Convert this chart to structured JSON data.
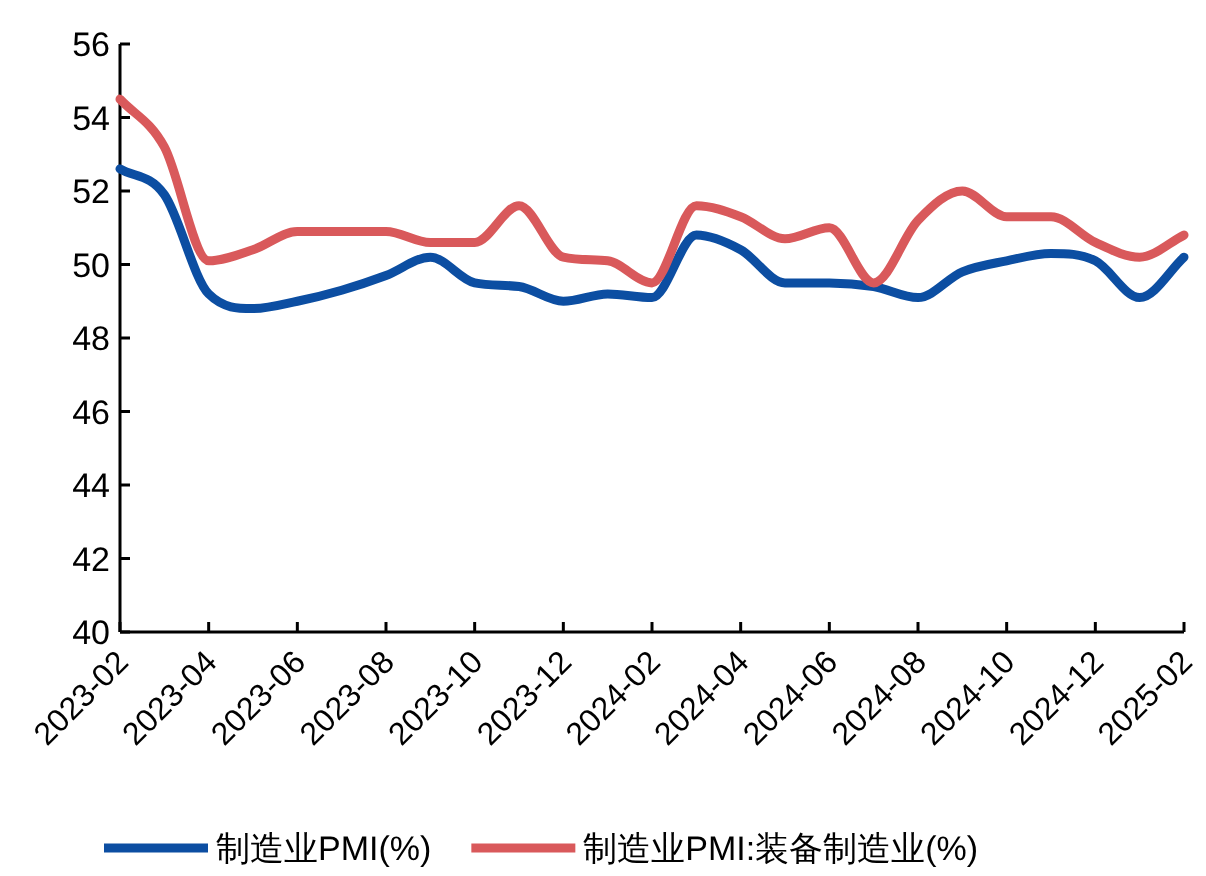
{
  "chart_data": {
    "type": "line",
    "x": [
      "2023-02",
      "2023-03",
      "2023-04",
      "2023-05",
      "2023-06",
      "2023-07",
      "2023-08",
      "2023-09",
      "2023-10",
      "2023-11",
      "2023-12",
      "2024-01",
      "2024-02",
      "2024-03",
      "2024-04",
      "2024-05",
      "2024-06",
      "2024-07",
      "2024-08",
      "2024-09",
      "2024-10",
      "2024-11",
      "2024-12",
      "2025-01",
      "2025-02"
    ],
    "series": [
      {
        "name": "制造业PMI(%)",
        "color": "#0c4ea2",
        "values": [
          52.6,
          51.9,
          49.2,
          48.8,
          49.0,
          49.3,
          49.7,
          50.2,
          49.5,
          49.4,
          49.0,
          49.2,
          49.1,
          50.8,
          50.4,
          49.5,
          49.5,
          49.4,
          49.1,
          49.8,
          50.1,
          50.3,
          50.1,
          49.1,
          50.2
        ]
      },
      {
        "name": "制造业PMI:装备制造业(%)",
        "color": "#d9595b",
        "values": [
          54.5,
          53.2,
          50.1,
          50.4,
          50.9,
          50.9,
          50.9,
          50.6,
          50.6,
          51.6,
          50.2,
          50.1,
          49.5,
          51.6,
          51.3,
          50.7,
          51.0,
          49.5,
          51.2,
          52.0,
          51.3,
          51.3,
          50.6,
          50.2,
          50.8
        ]
      }
    ],
    "xlim": [
      "2023-02",
      "2025-02"
    ],
    "xticks": [
      "2023-02",
      "2023-04",
      "2023-06",
      "2023-08",
      "2023-10",
      "2023-12",
      "2024-02",
      "2024-04",
      "2024-06",
      "2024-08",
      "2024-10",
      "2024-12",
      "2025-02"
    ],
    "ylim": [
      40,
      56
    ],
    "yticks": [
      40,
      42,
      44,
      46,
      48,
      50,
      52,
      54,
      56
    ],
    "grid": false,
    "legend": "bottom",
    "marker": "none",
    "line_style": "solid"
  }
}
